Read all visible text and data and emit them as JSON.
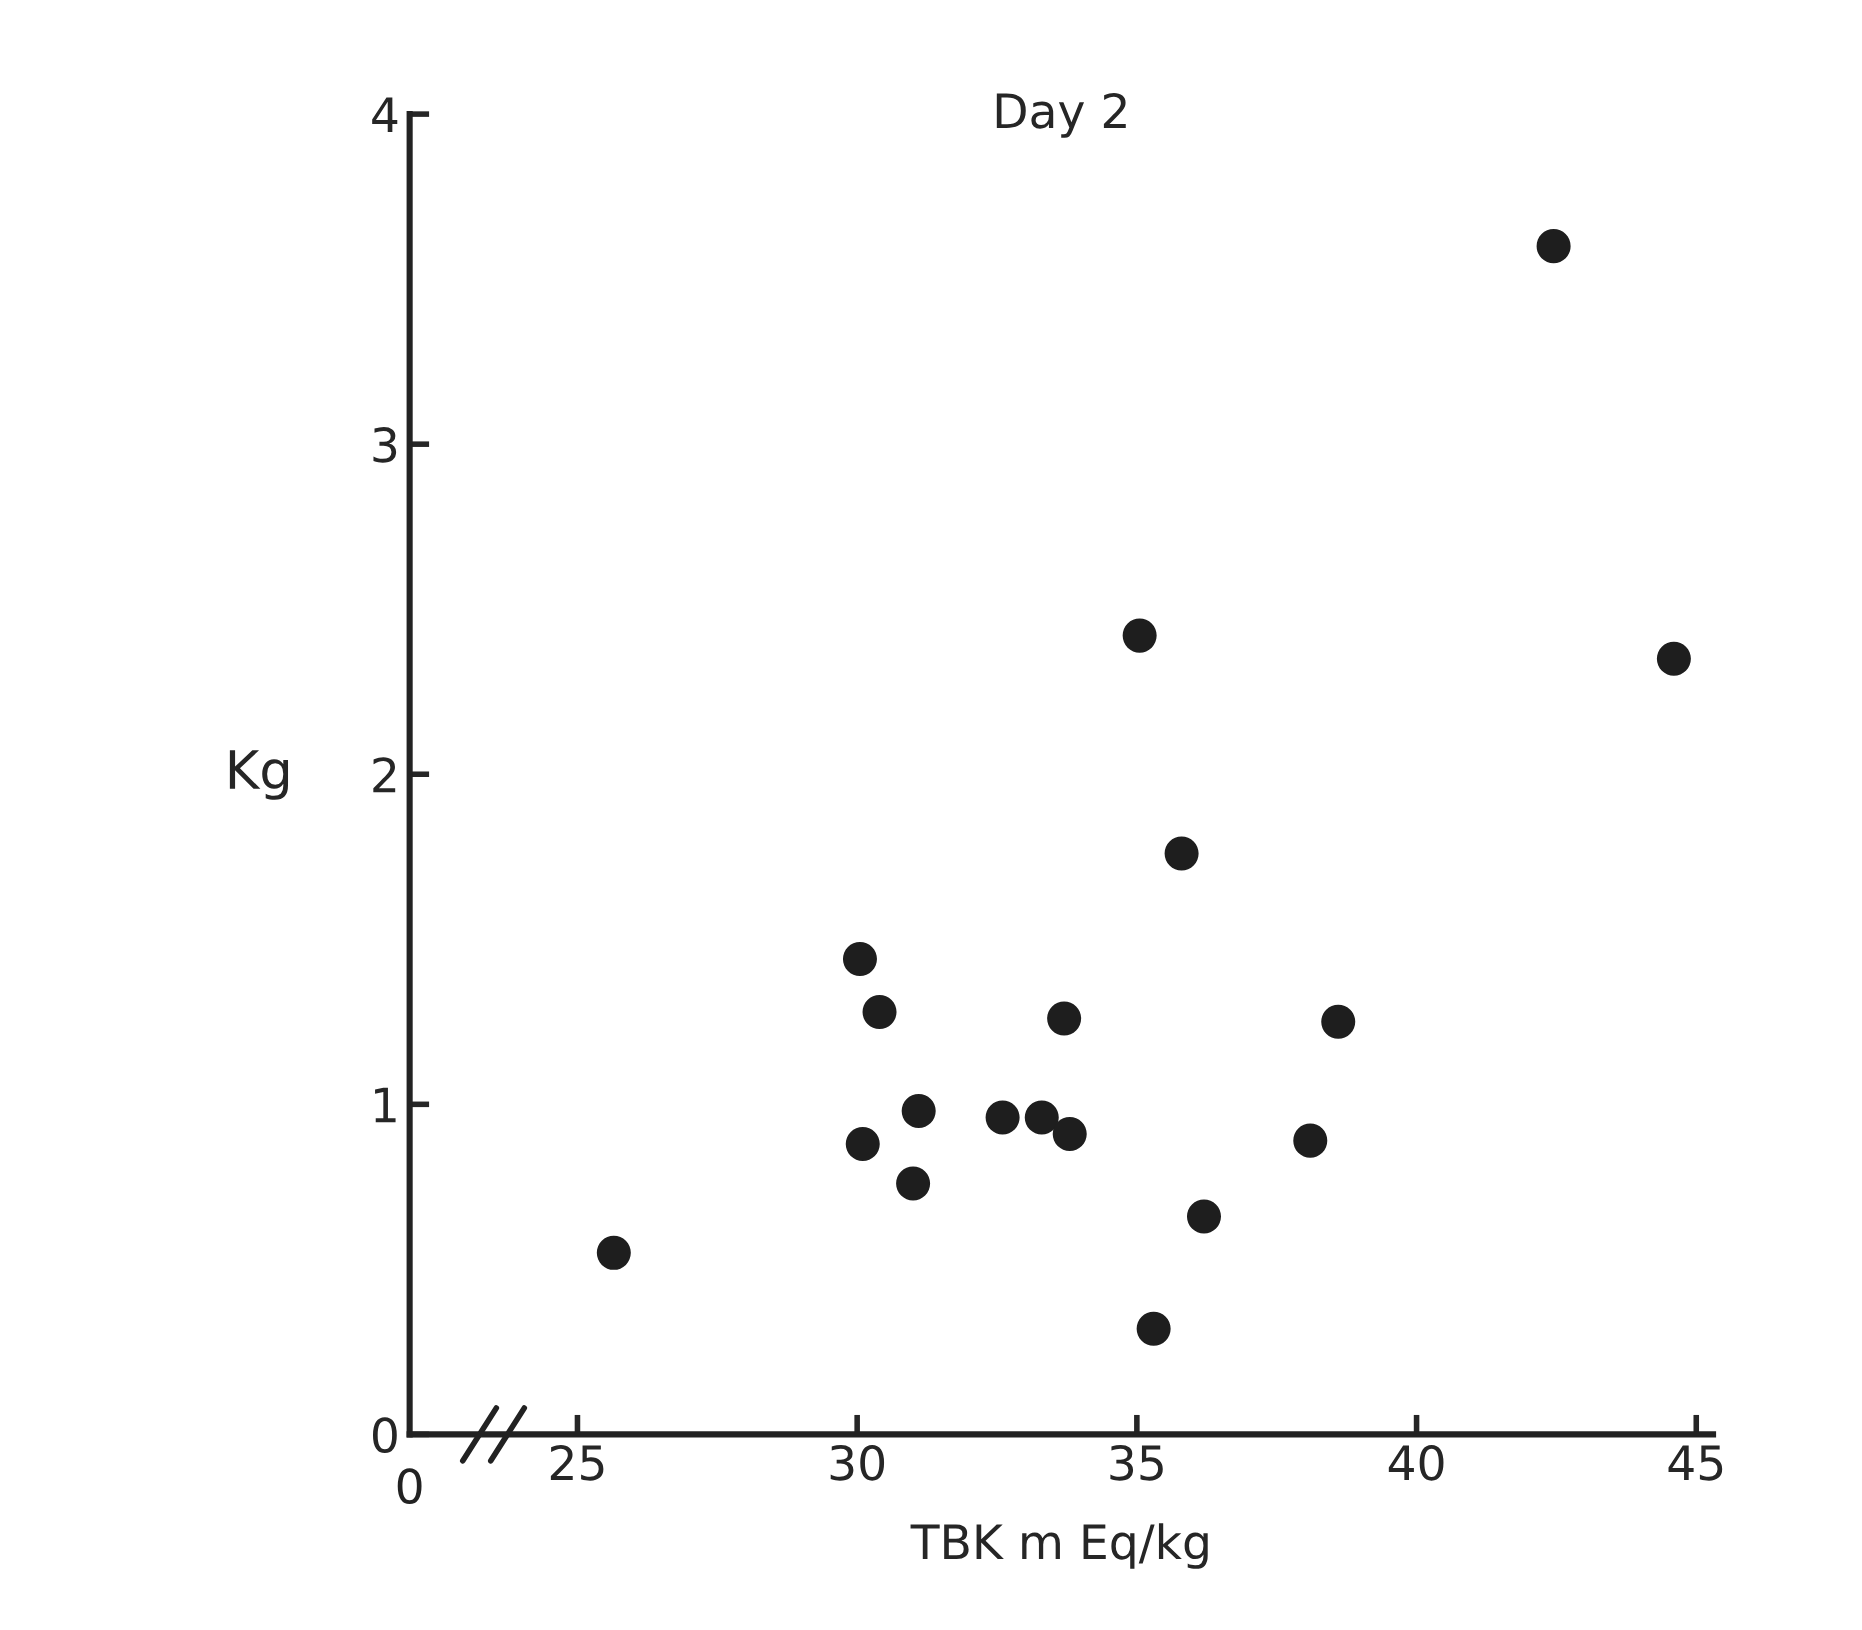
{
  "chart_data": {
    "type": "scatter",
    "title": "Day 2",
    "xlabel": "TBK m Eq/kg",
    "ylabel": "Kg",
    "x": [
      42.45,
      44.6,
      35.05,
      35.8,
      30.05,
      30.4,
      33.7,
      38.6,
      31.1,
      32.6,
      33.3,
      33.8,
      38.1,
      30.1,
      31.0,
      36.2,
      25.65,
      35.3
    ],
    "series": [
      {
        "color": "#1e1e1e",
        "values": [
          3.6,
          2.35,
          2.42,
          1.76,
          1.44,
          1.28,
          1.26,
          1.25,
          0.98,
          0.96,
          0.96,
          0.91,
          0.89,
          0.88,
          0.76,
          0.66,
          0.55,
          0.32
        ]
      }
    ],
    "xlim": [
      22,
      45.3
    ],
    "xticks": [
      25,
      30,
      35,
      40,
      45
    ],
    "annotations": [
      "0"
    ],
    "ylim": [
      0,
      4
    ],
    "yticks": [
      0,
      1,
      2,
      3,
      4
    ],
    "grid": false,
    "legend": false,
    "marker": "circle"
  }
}
